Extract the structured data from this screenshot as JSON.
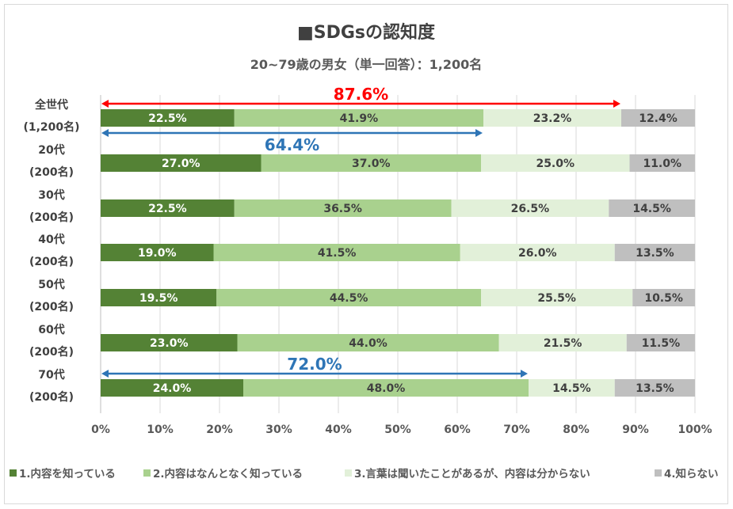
{
  "chart_data": {
    "type": "bar",
    "orientation": "horizontal",
    "stacked": true,
    "title": "■SDGsの認知度",
    "subtitle": "20~79歳の男女（単一回答）：1,200名",
    "categories": [
      {
        "name": "全世代",
        "n": "(1,200名)"
      },
      {
        "name": "20代",
        "n": "(200名)"
      },
      {
        "name": "30代",
        "n": "(200名)"
      },
      {
        "name": "40代",
        "n": "(200名)"
      },
      {
        "name": "50代",
        "n": "(200名)"
      },
      {
        "name": "60代",
        "n": "(200名)"
      },
      {
        "name": "70代",
        "n": "(200名)"
      }
    ],
    "series": [
      {
        "name": "1.内容を知っている",
        "color": "#548235",
        "label_color": "#ffffff",
        "values": [
          22.5,
          27.0,
          22.5,
          19.0,
          19.5,
          23.0,
          24.0
        ],
        "labels": [
          "22.5%",
          "27.0%",
          "22.5%",
          "19.0%",
          "19.5%",
          "23.0%",
          "24.0%"
        ]
      },
      {
        "name": "2.内容はなんとなく知っている",
        "color": "#a9d18e",
        "label_color": "#404040",
        "values": [
          41.9,
          37.0,
          36.5,
          41.5,
          44.5,
          44.0,
          48.0
        ],
        "labels": [
          "41.9%",
          "37.0%",
          "36.5%",
          "41.5%",
          "44.5%",
          "44.0%",
          "48.0%"
        ]
      },
      {
        "name": "3.言葉は聞いたことがあるが、内容は分からない",
        "color": "#e2f0d9",
        "label_color": "#404040",
        "values": [
          23.2,
          25.0,
          26.5,
          26.0,
          25.5,
          21.5,
          14.5
        ],
        "labels": [
          "23.2%",
          "25.0%",
          "26.5%",
          "26.0%",
          "25.5%",
          "21.5%",
          "14.5%"
        ]
      },
      {
        "name": "4.知らない",
        "color": "#bfbfbf",
        "label_color": "#404040",
        "values": [
          12.4,
          11.0,
          14.5,
          13.5,
          10.5,
          11.5,
          13.5
        ],
        "labels": [
          "12.4%",
          "11.0%",
          "14.5%",
          "13.5%",
          "10.5%",
          "11.5%",
          "13.5%"
        ]
      }
    ],
    "xlim": [
      0,
      100
    ],
    "xticks": [
      "0%",
      "10%",
      "20%",
      "30%",
      "40%",
      "50%",
      "60%",
      "70%",
      "80%",
      "90%",
      "100%"
    ],
    "grid": true,
    "legend_position": "bottom",
    "annotations": [
      {
        "text": "87.6%",
        "color": "#ff0000",
        "from": 0,
        "to": 87.6,
        "category": "全世代",
        "placement": "above"
      },
      {
        "text": "64.4%",
        "color": "#2e75b6",
        "from": 0,
        "to": 64.4,
        "category": "全世代",
        "placement": "below"
      },
      {
        "text": "72.0%",
        "color": "#2e75b6",
        "from": 0,
        "to": 72.0,
        "category": "70代",
        "placement": "above"
      }
    ]
  }
}
